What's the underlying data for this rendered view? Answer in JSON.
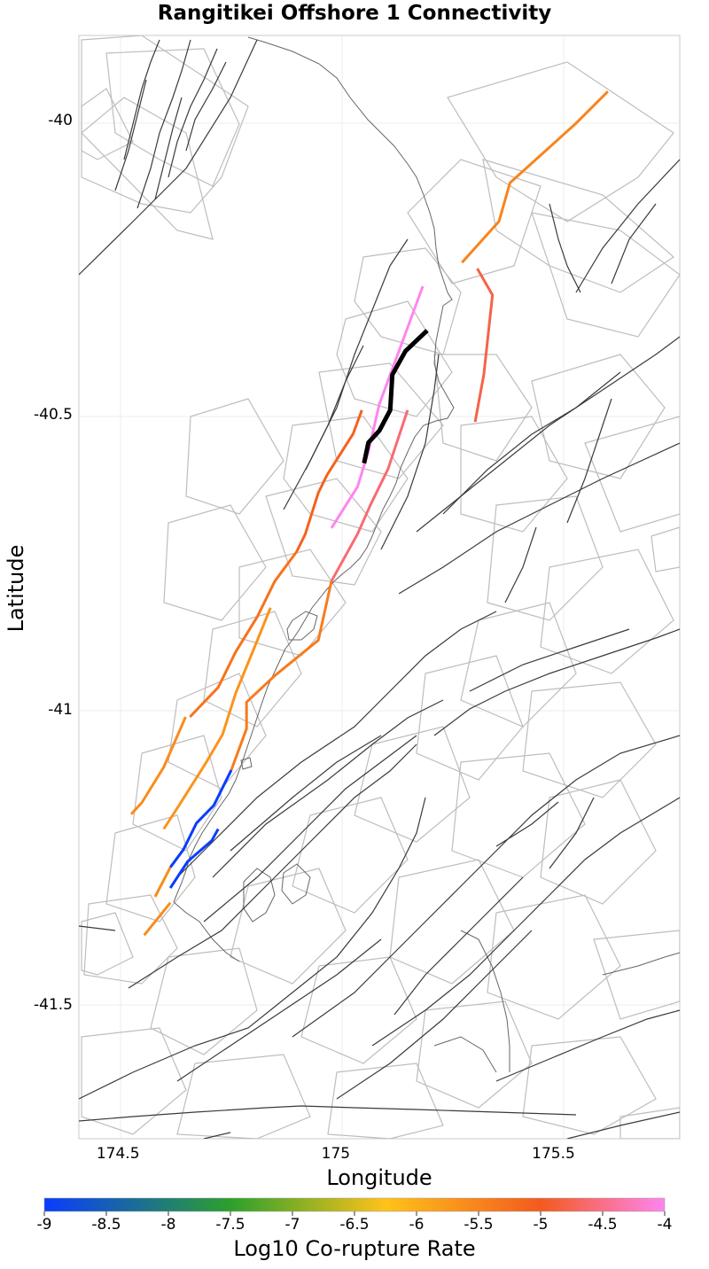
{
  "chart_data": {
    "type": "map",
    "title": "Rangitikei Offshore 1 Connectivity",
    "xlabel": "Longitude",
    "ylabel": "Latitude",
    "xlim": [
      174.41,
      175.79
    ],
    "ylim": [
      -41.725,
      -39.855
    ],
    "x_ticks": [
      174.5,
      175,
      175.5
    ],
    "x_tick_labels": [
      "174.5",
      "175",
      "175.5"
    ],
    "y_ticks": [
      -40,
      -40.5,
      -41,
      -41.5
    ],
    "y_tick_labels": [
      "-40",
      "-40.5",
      "-41",
      "-41.5"
    ],
    "colorbar": {
      "label": "Log10 Co-rupture Rate",
      "range": [
        -9,
        -4
      ],
      "ticks": [
        -9,
        -8.5,
        -8,
        -7.5,
        -7,
        -6.5,
        -6,
        -5.5,
        -5,
        -4.5,
        -4
      ],
      "tick_labels": [
        "-9",
        "-8.5",
        "-8",
        "-7.5",
        "-7",
        "-6.5",
        "-6",
        "-5.5",
        "-5",
        "-4.5",
        "-4"
      ],
      "colors": [
        "#0a3cff",
        "#2ca02c",
        "#ffc21a",
        "#f35a1e",
        "#ff85f0"
      ]
    },
    "target_fault": {
      "name": "Rangitikei Offshore 1",
      "color": "#000000",
      "trace": [
        [
          175.21,
          -40.355
        ],
        [
          175.16,
          -40.39
        ],
        [
          175.13,
          -40.43
        ],
        [
          175.125,
          -40.49
        ],
        [
          175.1,
          -40.525
        ],
        [
          175.075,
          -40.545
        ],
        [
          175.065,
          -40.58
        ]
      ]
    },
    "colored_faults": [
      {
        "rate": -4.0,
        "trace": [
          [
            175.2,
            -40.28
          ],
          [
            175.15,
            -40.38
          ],
          [
            175.1,
            -40.48
          ],
          [
            175.075,
            -40.56
          ],
          [
            175.05,
            -40.62
          ],
          [
            174.99,
            -40.69
          ]
        ]
      },
      {
        "rate": -4.6,
        "trace": [
          [
            175.165,
            -40.49
          ],
          [
            175.12,
            -40.59
          ],
          [
            175.08,
            -40.65
          ],
          [
            175.05,
            -40.7
          ],
          [
            174.99,
            -40.78
          ]
        ]
      },
      {
        "rate": -5.4,
        "trace": [
          [
            174.99,
            -40.78
          ],
          [
            174.96,
            -40.88
          ],
          [
            174.86,
            -40.94
          ],
          [
            174.795,
            -40.985
          ],
          [
            174.795,
            -41.03
          ],
          [
            174.77,
            -41.08
          ],
          [
            174.76,
            -41.1
          ]
        ]
      },
      {
        "rate": -9.0,
        "trace": [
          [
            174.76,
            -41.1
          ],
          [
            174.72,
            -41.16
          ],
          [
            174.68,
            -41.19
          ],
          [
            174.65,
            -41.235
          ],
          [
            174.62,
            -41.265
          ]
        ]
      },
      {
        "rate": -9.0,
        "trace": [
          [
            174.73,
            -41.2
          ],
          [
            174.715,
            -41.22
          ],
          [
            174.66,
            -41.255
          ],
          [
            174.62,
            -41.3
          ]
        ]
      },
      {
        "rate": -5.6,
        "trace": [
          [
            174.62,
            -41.265
          ],
          [
            174.585,
            -41.315
          ]
        ]
      },
      {
        "rate": -5.3,
        "trace": [
          [
            174.665,
            -41.01
          ],
          [
            174.73,
            -40.96
          ],
          [
            174.77,
            -40.9
          ],
          [
            174.82,
            -40.84
          ],
          [
            174.86,
            -40.78
          ],
          [
            174.91,
            -40.73
          ]
        ]
      },
      {
        "rate": -5.1,
        "trace": [
          [
            175.06,
            -40.49
          ],
          [
            175.04,
            -40.53
          ],
          [
            174.98,
            -40.6
          ],
          [
            174.96,
            -40.63
          ],
          [
            174.93,
            -40.7
          ],
          [
            174.91,
            -40.73
          ]
        ]
      },
      {
        "rate": -5.7,
        "trace": [
          [
            174.85,
            -40.825
          ],
          [
            174.82,
            -40.88
          ],
          [
            174.77,
            -40.97
          ],
          [
            174.74,
            -41.04
          ],
          [
            174.7,
            -41.09
          ],
          [
            174.64,
            -41.16
          ],
          [
            174.605,
            -41.2
          ]
        ]
      },
      {
        "rate": -5.6,
        "trace": [
          [
            174.655,
            -41.01
          ],
          [
            174.605,
            -41.095
          ],
          [
            174.555,
            -41.155
          ],
          [
            174.53,
            -41.175
          ]
        ]
      },
      {
        "rate": -5.6,
        "trace": [
          [
            174.62,
            -41.325
          ],
          [
            174.56,
            -41.38
          ]
        ]
      },
      {
        "rate": -5.5,
        "trace": [
          [
            175.625,
            -39.95
          ],
          [
            175.55,
            -40.005
          ],
          [
            175.4,
            -40.105
          ],
          [
            175.375,
            -40.17
          ],
          [
            175.29,
            -40.24
          ]
        ]
      },
      {
        "rate": -4.8,
        "trace": [
          [
            175.325,
            -40.25
          ],
          [
            175.36,
            -40.295
          ],
          [
            175.34,
            -40.43
          ],
          [
            175.32,
            -40.51
          ]
        ]
      }
    ]
  }
}
